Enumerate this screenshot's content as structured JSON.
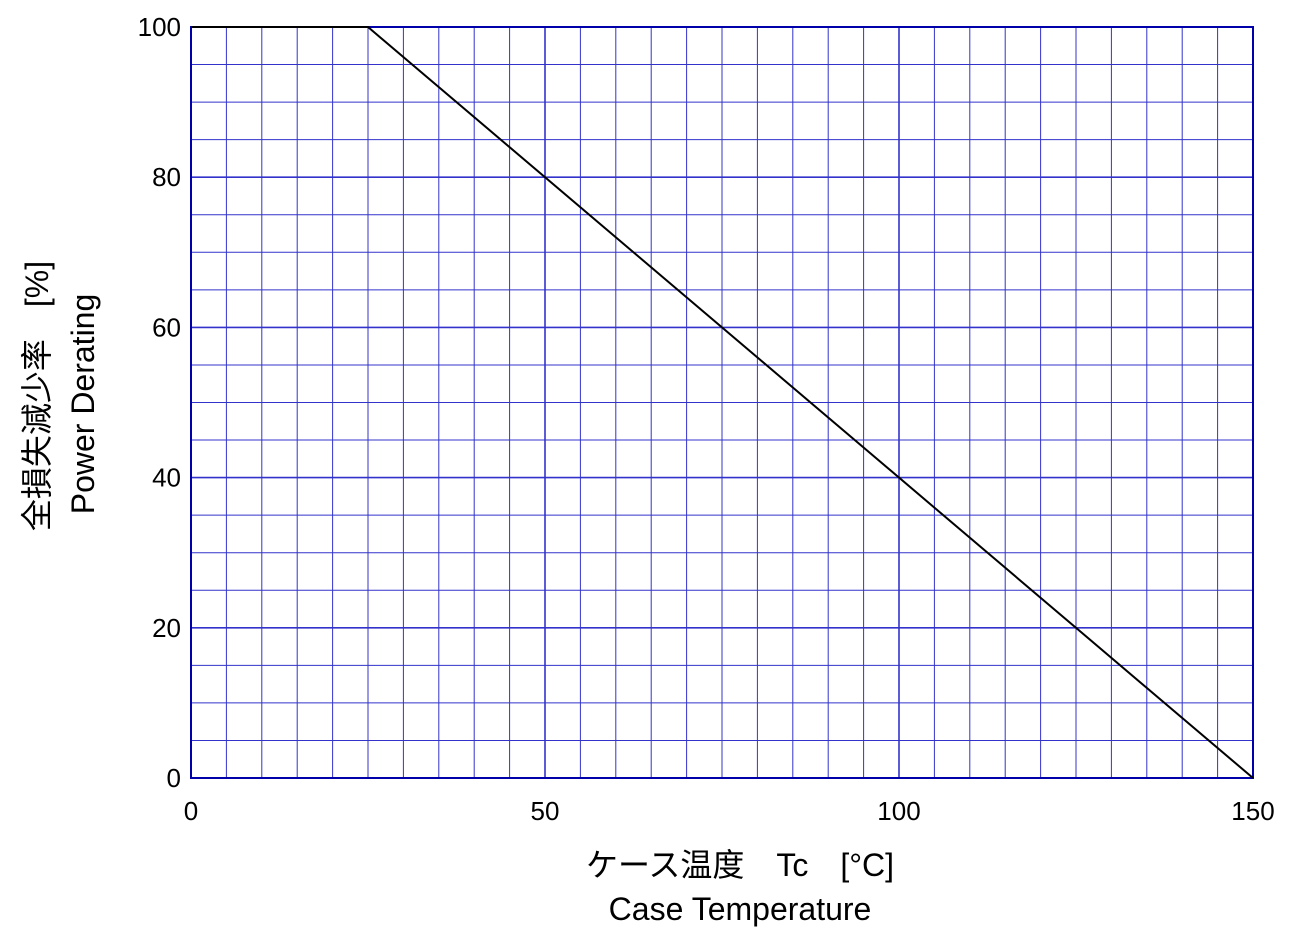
{
  "chart_data": {
    "type": "line",
    "title": "",
    "xlabel_line1": "ケース温度　Tc　[°C]",
    "xlabel_line2": "Case  Temperature",
    "ylabel_line1": "全損失減少率　[%]",
    "ylabel_line2": "Power  Derating",
    "xlim": [
      0,
      150
    ],
    "ylim": [
      0,
      100
    ],
    "x_major_ticks": [
      0,
      50,
      100,
      150
    ],
    "y_major_ticks": [
      0,
      20,
      40,
      60,
      80,
      100
    ],
    "x_minor_step": 5,
    "y_minor_step": 5,
    "grid": true,
    "colors": {
      "grid": "#3333cc",
      "frame": "#0000aa",
      "line": "#000000"
    },
    "series": [
      {
        "x": [
          0,
          25,
          150
        ],
        "y": [
          100,
          100,
          0
        ]
      }
    ]
  }
}
